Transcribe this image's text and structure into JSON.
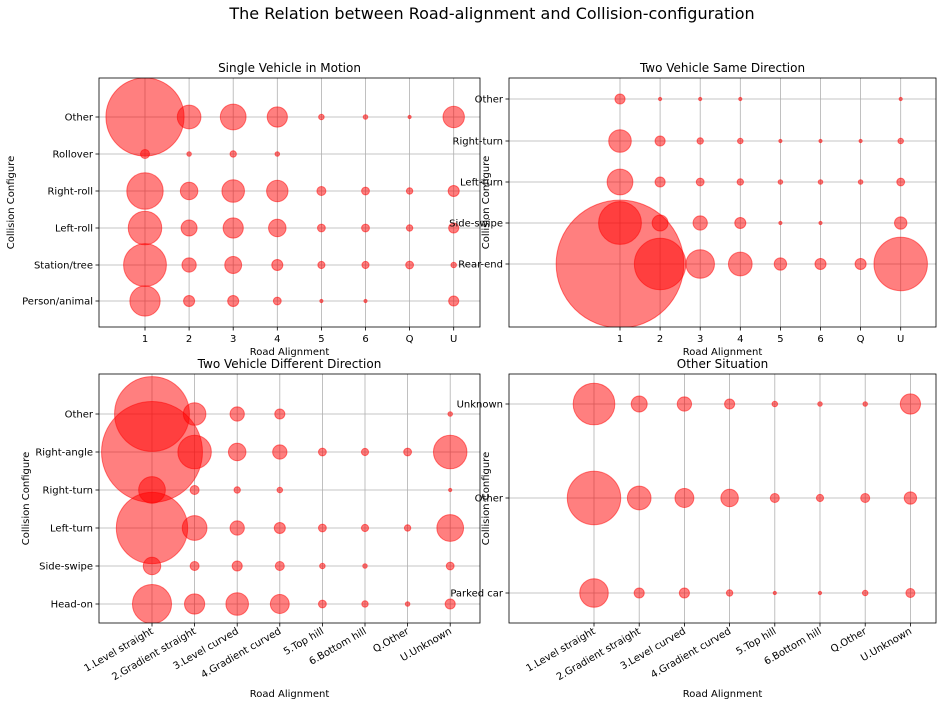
{
  "suptitle": "The Relation between Road-alignment and Collision-configuration",
  "colors": {
    "bubble": "#ff0000",
    "bubble_opacity": 0.5,
    "grid": "#b0b0b0"
  },
  "chart_data": [
    {
      "type": "scatter",
      "title": "Single Vehicle in Motion",
      "xlabel": "Road Alignment",
      "ylabel": "Collision Configure",
      "x_categories": [
        "1",
        "2",
        "3",
        "4",
        "5",
        "6",
        "Q",
        "U"
      ],
      "y_categories": [
        "Person/animal",
        "Station/tree",
        "Left-roll",
        "Right-roll",
        "Rollover",
        "Other"
      ],
      "sizes": [
        [
          90,
          12,
          12,
          6,
          1,
          1,
          0,
          10
        ],
        [
          180,
          20,
          28,
          12,
          5,
          5,
          6,
          3
        ],
        [
          110,
          25,
          40,
          30,
          6,
          6,
          4,
          10
        ],
        [
          130,
          30,
          50,
          45,
          8,
          6,
          4,
          12
        ],
        [
          8,
          2,
          4,
          2,
          0,
          0,
          0,
          0
        ],
        [
          600,
          55,
          65,
          40,
          3,
          2,
          1,
          45
        ]
      ],
      "grid": true
    },
    {
      "type": "scatter",
      "title": "Two Vehicle Same Direction",
      "xlabel": "Road Alignment",
      "ylabel": "Collision Configure",
      "x_categories": [
        "1",
        "2",
        "3",
        "4",
        "5",
        "6",
        "Q",
        "U"
      ],
      "y_categories": [
        "Rear-end",
        "Side-swipe",
        "Left-turn",
        "Right-turn",
        "Other"
      ],
      "sizes": [
        [
          1600,
          260,
          80,
          55,
          15,
          12,
          12,
          280
        ],
        [
          180,
          25,
          20,
          12,
          1,
          1,
          0,
          15
        ],
        [
          65,
          10,
          6,
          4,
          2,
          2,
          2,
          6
        ],
        [
          50,
          10,
          4,
          3,
          1,
          1,
          1,
          3
        ],
        [
          10,
          1,
          1,
          1,
          0,
          0,
          0,
          1
        ]
      ],
      "grid": true
    },
    {
      "type": "scatter",
      "title": "Two Vehicle Different Direction",
      "xlabel": "Road Alignment",
      "ylabel": "Collision Configure",
      "x_categories": [
        "1.Level straight",
        "2.Gradient straight",
        "3.Level curved",
        "4.Gradient curved",
        "5.Top hill",
        "6.Bottom hill",
        "Q.Other",
        "U.Unknown"
      ],
      "y_categories": [
        "Head-on",
        "Side-swipe",
        "Left-turn",
        "Right-turn",
        "Right-angle",
        "Other"
      ],
      "sizes": [
        [
          150,
          40,
          50,
          35,
          6,
          4,
          2,
          10
        ],
        [
          30,
          8,
          10,
          8,
          3,
          2,
          0,
          6
        ],
        [
          500,
          60,
          20,
          12,
          6,
          5,
          4,
          70
        ],
        [
          70,
          8,
          4,
          3,
          0,
          0,
          0,
          1
        ],
        [
          1000,
          110,
          30,
          20,
          6,
          5,
          6,
          110
        ],
        [
          550,
          50,
          20,
          10,
          0,
          0,
          0,
          2
        ]
      ],
      "grid": true
    },
    {
      "type": "scatter",
      "title": "Other Situation",
      "xlabel": "Road Alignment",
      "ylabel": "Collision Configure",
      "x_categories": [
        "1.Level straight",
        "2.Gradient straight",
        "3.Level curved",
        "4.Gradient curved",
        "5.Top hill",
        "6.Bottom hill",
        "Q.Other",
        "U.Unknown"
      ],
      "y_categories": [
        "Parked car",
        "Other",
        "Unknown"
      ],
      "sizes": [
        [
          80,
          10,
          10,
          4,
          1,
          1,
          3,
          8
        ],
        [
          280,
          55,
          35,
          30,
          8,
          5,
          8,
          15
        ],
        [
          170,
          25,
          20,
          10,
          3,
          2,
          2,
          40
        ]
      ],
      "grid": true
    }
  ]
}
